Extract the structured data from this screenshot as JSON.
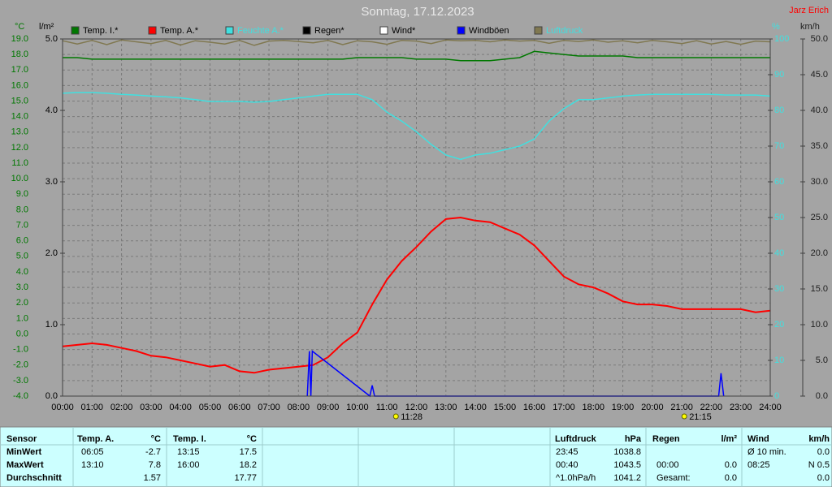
{
  "chart_data": {
    "type": "line",
    "title": "Sonntag, 17.12.2023",
    "author": "Jarz Erich",
    "y_label": "°C",
    "y3_label": "l/m²",
    "y2_label": "%",
    "y4_label": "km/h",
    "grid": true,
    "x": [
      0,
      0.5,
      1,
      1.5,
      2,
      2.5,
      3,
      3.5,
      4,
      4.5,
      5,
      5.5,
      6,
      6.5,
      7,
      7.5,
      8,
      8.5,
      9,
      9.5,
      10,
      10.5,
      11,
      11.5,
      12,
      12.5,
      13,
      13.5,
      14,
      14.5,
      15,
      15.5,
      16,
      16.5,
      17,
      17.5,
      18,
      18.5,
      19,
      19.5,
      20,
      20.5,
      21,
      21.5,
      22,
      22.5,
      23,
      23.5,
      24
    ],
    "xlim": [
      0,
      24
    ],
    "xticks": [
      {
        "value": 0,
        "label": "00:00"
      },
      {
        "value": 1,
        "label": "01:00"
      },
      {
        "value": 2,
        "label": "02:00"
      },
      {
        "value": 3,
        "label": "03:00"
      },
      {
        "value": 4,
        "label": "04:00"
      },
      {
        "value": 5,
        "label": "05:00"
      },
      {
        "value": 6,
        "label": "06:00"
      },
      {
        "value": 7,
        "label": "07:00"
      },
      {
        "value": 8,
        "label": "08:00"
      },
      {
        "value": 9,
        "label": "09:00"
      },
      {
        "value": 10,
        "label": "10:00"
      },
      {
        "value": 11,
        "label": "11:00"
      },
      {
        "value": 12,
        "label": "12:00"
      },
      {
        "value": 13,
        "label": "13:00"
      },
      {
        "value": 14,
        "label": "14:00"
      },
      {
        "value": 15,
        "label": "15:00"
      },
      {
        "value": 16,
        "label": "16:00"
      },
      {
        "value": 17,
        "label": "17:00"
      },
      {
        "value": 18,
        "label": "18:00"
      },
      {
        "value": 19,
        "label": "19:00"
      },
      {
        "value": 20,
        "label": "20:00"
      },
      {
        "value": 21,
        "label": "21:00"
      },
      {
        "value": 22,
        "label": "22:00"
      },
      {
        "value": 23,
        "label": "23:00"
      },
      {
        "value": 24,
        "label": "24:00"
      }
    ],
    "ylim": [
      -4,
      19
    ],
    "yticks": [
      {
        "value": 19,
        "label": "19.0"
      },
      {
        "value": 18,
        "label": "18.0"
      },
      {
        "value": 17,
        "label": "17.0"
      },
      {
        "value": 16,
        "label": "16.0"
      },
      {
        "value": 15,
        "label": "15.0"
      },
      {
        "value": 14,
        "label": "14.0"
      },
      {
        "value": 13,
        "label": "13.0"
      },
      {
        "value": 12,
        "label": "12.0"
      },
      {
        "value": 11,
        "label": "11.0"
      },
      {
        "value": 10,
        "label": "10.0"
      },
      {
        "value": 9,
        "label": "9.0"
      },
      {
        "value": 8,
        "label": "8.0"
      },
      {
        "value": 7,
        "label": "7.0"
      },
      {
        "value": 6,
        "label": "6.0"
      },
      {
        "value": 5,
        "label": "5.0"
      },
      {
        "value": 4,
        "label": "4.0"
      },
      {
        "value": 3,
        "label": "3.0"
      },
      {
        "value": 2,
        "label": "2.0"
      },
      {
        "value": 1,
        "label": "1.0"
      },
      {
        "value": 0,
        "label": "0.0"
      },
      {
        "value": -1,
        "label": "-1.0"
      },
      {
        "value": -2,
        "label": "-2.0"
      },
      {
        "value": -3,
        "label": "-3.0"
      },
      {
        "value": -4,
        "label": "-4.0"
      }
    ],
    "y3lim": [
      0,
      5
    ],
    "y3ticks": [
      {
        "value": 5,
        "label": "5.0"
      },
      {
        "value": 4,
        "label": "4.0"
      },
      {
        "value": 3,
        "label": "3.0"
      },
      {
        "value": 2,
        "label": "2.0"
      },
      {
        "value": 1,
        "label": "1.0"
      },
      {
        "value": 0,
        "label": "0.0"
      }
    ],
    "y2lim": [
      0,
      100
    ],
    "y2ticks": [
      100,
      90,
      80,
      70,
      60,
      50,
      40,
      30,
      20,
      10,
      0
    ],
    "y4lim": [
      0,
      50
    ],
    "y4ticks": [
      {
        "value": 50,
        "label": "50.0"
      },
      {
        "value": 45,
        "label": "45.0"
      },
      {
        "value": 40,
        "label": "40.0"
      },
      {
        "value": 35,
        "label": "35.0"
      },
      {
        "value": 30,
        "label": "30.0"
      },
      {
        "value": 25,
        "label": "25.0"
      },
      {
        "value": 20,
        "label": "20.0"
      },
      {
        "value": 15,
        "label": "15.0"
      },
      {
        "value": 10,
        "label": "10.0"
      },
      {
        "value": 5,
        "label": "5.0"
      },
      {
        "value": 0,
        "label": "0.0"
      }
    ],
    "series": [
      {
        "name": "Temp. I.*",
        "color": "#007800",
        "axis": "y",
        "values": [
          17.8,
          17.8,
          17.7,
          17.7,
          17.7,
          17.7,
          17.7,
          17.7,
          17.7,
          17.7,
          17.7,
          17.7,
          17.7,
          17.7,
          17.7,
          17.7,
          17.7,
          17.7,
          17.7,
          17.7,
          17.8,
          17.8,
          17.8,
          17.8,
          17.7,
          17.7,
          17.7,
          17.6,
          17.6,
          17.6,
          17.7,
          17.8,
          18.2,
          18.1,
          18.0,
          17.9,
          17.9,
          17.9,
          17.9,
          17.8,
          17.8,
          17.8,
          17.8,
          17.8,
          17.8,
          17.8,
          17.8,
          17.8,
          17.8
        ]
      },
      {
        "name": "Temp. A.*",
        "color": "#ff0000",
        "axis": "y",
        "values": [
          -0.8,
          -0.7,
          -0.6,
          -0.7,
          -0.9,
          -1.1,
          -1.4,
          -1.5,
          -1.7,
          -1.9,
          -2.1,
          -2.0,
          -2.4,
          -2.5,
          -2.3,
          -2.2,
          -2.1,
          -2.0,
          -1.5,
          -0.6,
          0.1,
          1.9,
          3.5,
          4.7,
          5.6,
          6.6,
          7.4,
          7.5,
          7.3,
          7.2,
          6.8,
          6.4,
          5.7,
          4.7,
          3.7,
          3.2,
          3.0,
          2.6,
          2.1,
          1.9,
          1.9,
          1.8,
          1.6,
          1.6,
          1.6,
          1.6,
          1.6,
          1.4,
          1.5
        ]
      },
      {
        "name": "Feuchte A.*",
        "color": "#40e0e0",
        "label_color": "#40e0e0",
        "axis": "y2",
        "values": [
          84.8,
          85,
          85,
          84.8,
          84.5,
          84.3,
          84,
          83.8,
          83.5,
          83,
          82.5,
          82.5,
          82.5,
          82.3,
          82.5,
          83,
          83.5,
          84,
          84.5,
          84.5,
          84.5,
          83,
          79.5,
          77,
          74,
          70.5,
          67.5,
          66.3,
          67.5,
          68,
          69,
          70,
          72,
          77,
          80.5,
          83,
          83,
          83.5,
          84,
          84.3,
          84.5,
          84.5,
          84.5,
          84.5,
          84.5,
          84.3,
          84.3,
          84.3,
          84
        ]
      },
      {
        "name": "Regen*",
        "color": "#000000",
        "axis": "y3",
        "values": [
          0,
          0,
          0,
          0,
          0,
          0,
          0,
          0,
          0,
          0,
          0,
          0,
          0,
          0,
          0,
          0,
          0,
          0,
          0,
          0,
          0,
          0,
          0,
          0,
          0,
          0,
          0,
          0,
          0,
          0,
          0,
          0,
          0,
          0,
          0,
          0,
          0,
          0,
          0,
          0,
          0,
          0,
          0,
          0,
          0,
          0,
          0,
          0,
          0
        ]
      },
      {
        "name": "Wind*",
        "color": "#ffffff",
        "axis": "y4",
        "values": [
          0,
          0,
          0,
          0,
          0,
          0,
          0,
          0,
          0,
          0,
          0,
          0,
          0,
          0,
          0,
          0,
          0,
          0,
          0,
          0,
          0,
          0,
          0,
          0,
          0,
          0,
          0,
          0,
          0,
          0,
          0,
          0,
          0,
          0,
          0,
          0,
          0,
          0,
          0,
          0,
          0,
          0,
          0,
          0,
          0,
          0,
          0,
          0,
          0
        ]
      },
      {
        "name": "Windböen",
        "color": "#0000ff",
        "axis": "y4",
        "x": [
          8.3,
          8.37,
          8.42,
          8.47,
          10.42,
          10.5,
          10.58,
          22.25,
          22.33,
          22.42
        ],
        "values": [
          0,
          6.3,
          0,
          6.3,
          0,
          1.5,
          0,
          0,
          3.2,
          0
        ]
      },
      {
        "name": "Luftdruck",
        "color": "#807850",
        "label_color": "#40e0e0",
        "axis": "y2",
        "values": [
          99.5,
          98.6,
          99.6,
          98.4,
          99.7,
          99.2,
          98.7,
          99.6,
          98.3,
          99.5,
          99.1,
          98.6,
          99.6,
          98.2,
          99.4,
          99.6,
          99.3,
          98.9,
          99.6,
          98.4,
          99.5,
          99.2,
          98.5,
          99.6,
          99.4,
          98.7,
          99.7,
          99.5,
          99.6,
          99.2,
          99.7,
          99.4,
          99.6,
          98.8,
          99.6,
          99.3,
          99.7,
          99.1,
          99.5,
          98.9,
          99.6,
          99.2,
          98.7,
          99.5,
          98.6,
          99.3,
          98.5,
          99.4,
          99.2
        ]
      }
    ],
    "annotations": [
      {
        "x": 11.47,
        "label": "11:28"
      },
      {
        "x": 21.25,
        "label": "21:15"
      }
    ]
  },
  "stats_table": {
    "header": [
      "Sensor",
      "Temp. A.",
      "°C",
      "Temp. I.",
      "°C",
      "Luftdruck",
      "hPa",
      "Regen",
      "l/m²",
      "Wind",
      "km/h"
    ],
    "rows": [
      [
        "MinWert",
        "06:05",
        "-2.7",
        "13:15",
        "17.5",
        "23:45",
        "1038.8",
        null,
        null,
        "Ø 10 min.",
        "0.0"
      ],
      [
        "MaxWert",
        "13:10",
        "7.8",
        "16:00",
        "18.2",
        "00:40",
        "1043.5",
        "00:00",
        "0.0",
        "08:25",
        "N 0.5"
      ],
      [
        "Durchschnitt",
        null,
        "1.57",
        null,
        "17.77",
        "^1.0hPa/h",
        "1041.2",
        "Gesamt:",
        "0.0",
        null,
        "0.0"
      ]
    ]
  }
}
